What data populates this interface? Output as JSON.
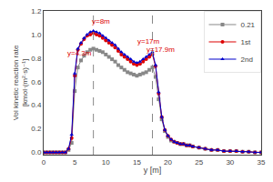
{
  "chart_data": {
    "type": "line",
    "x_label": "y [m]",
    "y_label": "Vol kinetic reaction rate\n[kmol·(m²·s)⁻¹]",
    "xlim": [
      0,
      35
    ],
    "ylim": [
      -0.02,
      1.2
    ],
    "xticks": [
      0,
      5,
      10,
      15,
      20,
      25,
      30,
      35
    ],
    "yticks": [
      {
        "value": 0.0,
        "label": "0.0"
      },
      0.2,
      0.4,
      0.6,
      0.8,
      {
        "value": 1.0,
        "label": "1.0"
      },
      1.2
    ],
    "grid": false,
    "legend": "upper right",
    "vlines": [
      8.0,
      17.5
    ],
    "annotations": [
      {
        "text": "y=4.3m",
        "x": 3.5,
        "y": 0.79,
        "color": "#dd0000"
      },
      {
        "text": "y=8m",
        "x": 7.5,
        "y": 1.06,
        "color": "#dd0000"
      },
      {
        "text": "y=17m",
        "x": 14.8,
        "y": 0.89,
        "color": "#dd0000"
      },
      {
        "text": "y=17.9m",
        "x": 16.2,
        "y": 0.82,
        "color": "#dd0000"
      }
    ],
    "x": [
      0,
      0.5,
      1.0,
      1.5,
      2.0,
      2.5,
      3.0,
      3.5,
      4.0,
      4.5,
      5.0,
      5.5,
      6.0,
      6.5,
      7.0,
      7.5,
      8.0,
      8.5,
      9.0,
      9.5,
      10.0,
      10.5,
      11.0,
      11.5,
      12.0,
      12.5,
      13.0,
      13.5,
      14.0,
      14.5,
      15.0,
      15.5,
      16.0,
      16.5,
      17.0,
      17.5,
      18.0,
      18.5,
      19.0,
      19.5,
      20.0,
      20.5,
      21.0,
      21.5,
      22.0,
      22.5,
      23.0,
      23.5,
      24.0,
      25.0,
      26.0,
      27.0,
      28.0,
      29.0,
      30.0,
      31.0,
      32.0,
      33.0,
      34.0,
      35.0
    ],
    "series": [
      {
        "name": "0.21",
        "color": "#888888",
        "marker": "square",
        "values": [
          0.0,
          0.0,
          0.0,
          0.0,
          0.0,
          0.0,
          0.0,
          0.0,
          0.02,
          0.08,
          0.52,
          0.72,
          0.78,
          0.82,
          0.85,
          0.87,
          0.88,
          0.87,
          0.86,
          0.85,
          0.83,
          0.81,
          0.79,
          0.77,
          0.74,
          0.72,
          0.7,
          0.68,
          0.67,
          0.66,
          0.65,
          0.66,
          0.67,
          0.68,
          0.7,
          0.72,
          0.64,
          0.45,
          0.28,
          0.18,
          0.13,
          0.1,
          0.09,
          0.08,
          0.07,
          0.07,
          0.06,
          0.06,
          0.05,
          0.04,
          0.03,
          0.02,
          0.02,
          0.01,
          0.01,
          0.01,
          0.005,
          0.005,
          0.0,
          0.0
        ]
      },
      {
        "name": "1st",
        "color": "#dd0000",
        "marker": "circle",
        "values": [
          0.0,
          0.0,
          0.0,
          0.0,
          0.0,
          0.0,
          0.0,
          0.0,
          0.03,
          0.12,
          0.65,
          0.87,
          0.92,
          0.96,
          0.99,
          1.0,
          1.01,
          1.0,
          0.99,
          0.97,
          0.95,
          0.93,
          0.91,
          0.89,
          0.86,
          0.83,
          0.81,
          0.79,
          0.77,
          0.75,
          0.74,
          0.75,
          0.77,
          0.79,
          0.81,
          0.83,
          0.73,
          0.5,
          0.3,
          0.19,
          0.14,
          0.11,
          0.09,
          0.08,
          0.07,
          0.07,
          0.06,
          0.06,
          0.05,
          0.04,
          0.03,
          0.02,
          0.02,
          0.01,
          0.01,
          0.01,
          0.005,
          0.005,
          0.0,
          0.0
        ]
      },
      {
        "name": "2nd",
        "color": "#0000cc",
        "marker": "triangle-up",
        "values": [
          0.0,
          0.0,
          0.0,
          0.0,
          0.0,
          0.0,
          0.0,
          0.0,
          0.03,
          0.15,
          0.67,
          0.88,
          0.93,
          0.97,
          1.0,
          1.02,
          1.03,
          1.02,
          1.01,
          0.99,
          0.97,
          0.95,
          0.93,
          0.91,
          0.88,
          0.85,
          0.83,
          0.81,
          0.79,
          0.77,
          0.76,
          0.77,
          0.79,
          0.81,
          0.83,
          0.85,
          0.74,
          0.51,
          0.3,
          0.19,
          0.14,
          0.11,
          0.09,
          0.08,
          0.07,
          0.07,
          0.06,
          0.06,
          0.05,
          0.04,
          0.03,
          0.02,
          0.02,
          0.01,
          0.01,
          0.01,
          0.005,
          0.005,
          0.0,
          0.0
        ]
      }
    ]
  }
}
